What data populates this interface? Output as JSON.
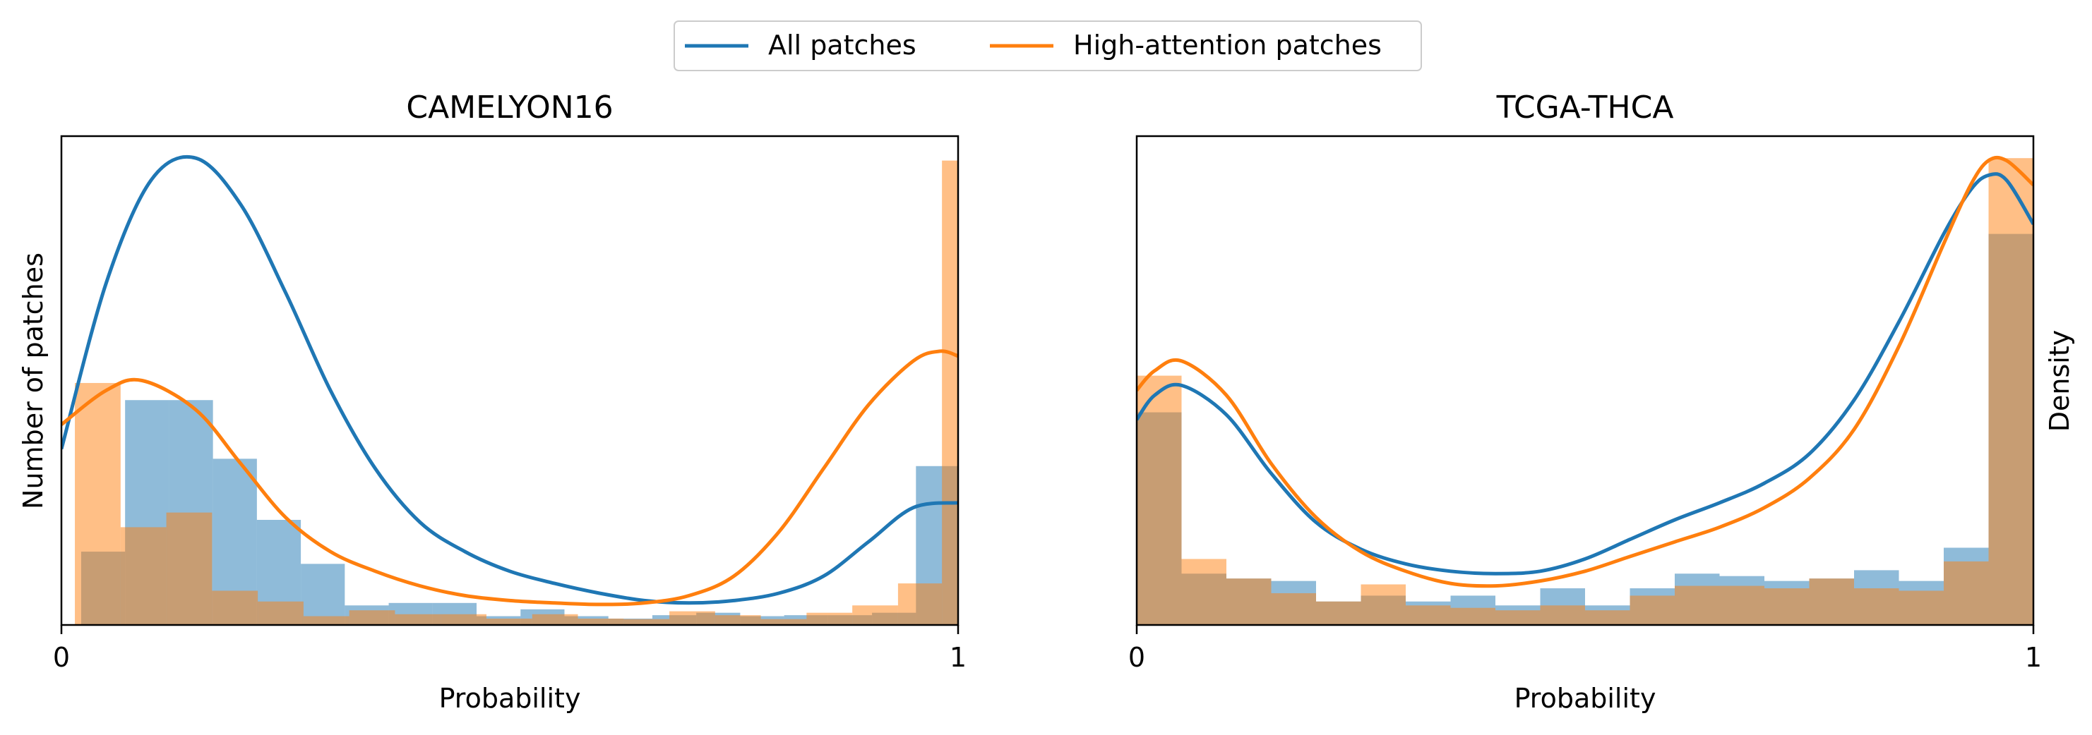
{
  "legend": {
    "placement": "top-center",
    "entries": [
      {
        "label": "All patches",
        "color": "#1f77b4"
      },
      {
        "label": "High-attention patches",
        "color": "#ff7f0e"
      }
    ]
  },
  "colors": {
    "all_line": "#1f77b4",
    "high_line": "#ff7f0e",
    "all_hist": "#1f77b4",
    "high_hist": "#ff7f0e",
    "hist_alpha": 0.5
  },
  "chart_data": [
    {
      "type": "histogram+kde",
      "title": "CAMELYON16",
      "xlabel": "Probability",
      "ylabel": "Number of patches",
      "xlim": [
        0,
        1
      ],
      "ylim": [
        0,
        1
      ],
      "xticks": [
        {
          "value": 0,
          "label": "0"
        },
        {
          "value": 1,
          "label": "1"
        }
      ],
      "show_yticks": false,
      "series": [
        {
          "name": "All patches",
          "hist": [
            {
              "x0": 0.022,
              "x1": 0.071,
              "h": 0.15
            },
            {
              "x0": 0.071,
              "x1": 0.12,
              "h": 0.46
            },
            {
              "x0": 0.12,
              "x1": 0.169,
              "h": 0.46
            },
            {
              "x0": 0.169,
              "x1": 0.218,
              "h": 0.34
            },
            {
              "x0": 0.218,
              "x1": 0.267,
              "h": 0.215
            },
            {
              "x0": 0.267,
              "x1": 0.316,
              "h": 0.125
            },
            {
              "x0": 0.316,
              "x1": 0.365,
              "h": 0.04
            },
            {
              "x0": 0.365,
              "x1": 0.414,
              "h": 0.045
            },
            {
              "x0": 0.414,
              "x1": 0.463,
              "h": 0.045
            },
            {
              "x0": 0.463,
              "x1": 0.512,
              "h": 0.018
            },
            {
              "x0": 0.512,
              "x1": 0.561,
              "h": 0.032
            },
            {
              "x0": 0.561,
              "x1": 0.61,
              "h": 0.018
            },
            {
              "x0": 0.61,
              "x1": 0.659,
              "h": 0.013
            },
            {
              "x0": 0.659,
              "x1": 0.708,
              "h": 0.02
            },
            {
              "x0": 0.708,
              "x1": 0.757,
              "h": 0.025
            },
            {
              "x0": 0.757,
              "x1": 0.806,
              "h": 0.018
            },
            {
              "x0": 0.806,
              "x1": 0.855,
              "h": 0.02
            },
            {
              "x0": 0.855,
              "x1": 0.904,
              "h": 0.02
            },
            {
              "x0": 0.904,
              "x1": 0.953,
              "h": 0.025
            },
            {
              "x0": 0.953,
              "x1": 1.0,
              "h": 0.325
            }
          ],
          "kde": {
            "x": [
              0,
              0.05,
              0.1,
              0.15,
              0.2,
              0.25,
              0.3,
              0.35,
              0.4,
              0.45,
              0.5,
              0.55,
              0.6,
              0.65,
              0.7,
              0.75,
              0.8,
              0.85,
              0.9,
              0.95,
              1.0
            ],
            "y": [
              0.36,
              0.7,
              0.91,
              0.955,
              0.86,
              0.68,
              0.48,
              0.32,
              0.21,
              0.15,
              0.11,
              0.085,
              0.065,
              0.05,
              0.045,
              0.05,
              0.065,
              0.1,
              0.17,
              0.24,
              0.25
            ]
          }
        },
        {
          "name": "High-attention patches",
          "hist": [
            {
              "x0": 0.015,
              "x1": 0.066,
              "h": 0.495
            },
            {
              "x0": 0.066,
              "x1": 0.117,
              "h": 0.2
            },
            {
              "x0": 0.117,
              "x1": 0.168,
              "h": 0.23
            },
            {
              "x0": 0.168,
              "x1": 0.219,
              "h": 0.07
            },
            {
              "x0": 0.219,
              "x1": 0.27,
              "h": 0.048
            },
            {
              "x0": 0.27,
              "x1": 0.321,
              "h": 0.018
            },
            {
              "x0": 0.321,
              "x1": 0.372,
              "h": 0.03
            },
            {
              "x0": 0.372,
              "x1": 0.423,
              "h": 0.022
            },
            {
              "x0": 0.423,
              "x1": 0.474,
              "h": 0.022
            },
            {
              "x0": 0.474,
              "x1": 0.525,
              "h": 0.013
            },
            {
              "x0": 0.525,
              "x1": 0.576,
              "h": 0.022
            },
            {
              "x0": 0.576,
              "x1": 0.627,
              "h": 0.013
            },
            {
              "x0": 0.627,
              "x1": 0.678,
              "h": 0.012
            },
            {
              "x0": 0.678,
              "x1": 0.729,
              "h": 0.028
            },
            {
              "x0": 0.729,
              "x1": 0.78,
              "h": 0.02
            },
            {
              "x0": 0.78,
              "x1": 0.831,
              "h": 0.012
            },
            {
              "x0": 0.831,
              "x1": 0.882,
              "h": 0.025
            },
            {
              "x0": 0.882,
              "x1": 0.933,
              "h": 0.04
            },
            {
              "x0": 0.933,
              "x1": 0.982,
              "h": 0.085
            },
            {
              "x0": 0.982,
              "x1": 1.0,
              "h": 0.95
            }
          ],
          "kde": {
            "x": [
              0,
              0.05,
              0.09,
              0.15,
              0.2,
              0.25,
              0.3,
              0.35,
              0.4,
              0.45,
              0.5,
              0.55,
              0.6,
              0.65,
              0.7,
              0.75,
              0.8,
              0.85,
              0.9,
              0.95,
              0.98,
              1.0
            ],
            "y": [
              0.41,
              0.48,
              0.5,
              0.44,
              0.33,
              0.22,
              0.15,
              0.11,
              0.08,
              0.06,
              0.05,
              0.045,
              0.042,
              0.045,
              0.06,
              0.1,
              0.19,
              0.32,
              0.45,
              0.54,
              0.56,
              0.55
            ]
          }
        }
      ]
    },
    {
      "type": "histogram+kde",
      "title": "TCGA-THCA",
      "xlabel": "Probability",
      "ylabel": "Density",
      "ylabel_side": "right",
      "xlim": [
        0,
        1
      ],
      "ylim": [
        0,
        1
      ],
      "xticks": [
        {
          "value": 0,
          "label": "0"
        },
        {
          "value": 1,
          "label": "1"
        }
      ],
      "show_yticks": false,
      "series": [
        {
          "name": "All patches",
          "hist": [
            {
              "x0": 0.0,
              "x1": 0.05,
              "h": 0.435
            },
            {
              "x0": 0.05,
              "x1": 0.1,
              "h": 0.105
            },
            {
              "x0": 0.1,
              "x1": 0.15,
              "h": 0.095
            },
            {
              "x0": 0.15,
              "x1": 0.2,
              "h": 0.09
            },
            {
              "x0": 0.2,
              "x1": 0.25,
              "h": 0.048
            },
            {
              "x0": 0.25,
              "x1": 0.3,
              "h": 0.06
            },
            {
              "x0": 0.3,
              "x1": 0.35,
              "h": 0.048
            },
            {
              "x0": 0.35,
              "x1": 0.4,
              "h": 0.06
            },
            {
              "x0": 0.4,
              "x1": 0.45,
              "h": 0.04
            },
            {
              "x0": 0.45,
              "x1": 0.5,
              "h": 0.075
            },
            {
              "x0": 0.5,
              "x1": 0.55,
              "h": 0.04
            },
            {
              "x0": 0.55,
              "x1": 0.6,
              "h": 0.075
            },
            {
              "x0": 0.6,
              "x1": 0.65,
              "h": 0.105
            },
            {
              "x0": 0.65,
              "x1": 0.7,
              "h": 0.1
            },
            {
              "x0": 0.7,
              "x1": 0.75,
              "h": 0.09
            },
            {
              "x0": 0.75,
              "x1": 0.8,
              "h": 0.095
            },
            {
              "x0": 0.8,
              "x1": 0.85,
              "h": 0.112
            },
            {
              "x0": 0.85,
              "x1": 0.9,
              "h": 0.09
            },
            {
              "x0": 0.9,
              "x1": 0.95,
              "h": 0.158
            },
            {
              "x0": 0.95,
              "x1": 1.0,
              "h": 0.8
            }
          ],
          "kde": {
            "x": [
              0,
              0.02,
              0.05,
              0.1,
              0.15,
              0.2,
              0.25,
              0.3,
              0.35,
              0.4,
              0.45,
              0.5,
              0.55,
              0.6,
              0.65,
              0.7,
              0.75,
              0.8,
              0.85,
              0.9,
              0.93,
              0.95,
              0.97,
              1.0
            ],
            "y": [
              0.42,
              0.47,
              0.49,
              0.43,
              0.31,
              0.21,
              0.155,
              0.125,
              0.11,
              0.105,
              0.11,
              0.135,
              0.175,
              0.215,
              0.25,
              0.29,
              0.35,
              0.46,
              0.62,
              0.8,
              0.89,
              0.92,
              0.91,
              0.82
            ]
          }
        },
        {
          "name": "High-attention patches",
          "hist": [
            {
              "x0": 0.0,
              "x1": 0.05,
              "h": 0.51
            },
            {
              "x0": 0.05,
              "x1": 0.1,
              "h": 0.135
            },
            {
              "x0": 0.1,
              "x1": 0.15,
              "h": 0.095
            },
            {
              "x0": 0.15,
              "x1": 0.2,
              "h": 0.065
            },
            {
              "x0": 0.2,
              "x1": 0.25,
              "h": 0.048
            },
            {
              "x0": 0.25,
              "x1": 0.3,
              "h": 0.083
            },
            {
              "x0": 0.3,
              "x1": 0.35,
              "h": 0.04
            },
            {
              "x0": 0.35,
              "x1": 0.4,
              "h": 0.035
            },
            {
              "x0": 0.4,
              "x1": 0.45,
              "h": 0.03
            },
            {
              "x0": 0.45,
              "x1": 0.5,
              "h": 0.04
            },
            {
              "x0": 0.5,
              "x1": 0.55,
              "h": 0.03
            },
            {
              "x0": 0.55,
              "x1": 0.6,
              "h": 0.06
            },
            {
              "x0": 0.6,
              "x1": 0.65,
              "h": 0.08
            },
            {
              "x0": 0.65,
              "x1": 0.7,
              "h": 0.08
            },
            {
              "x0": 0.7,
              "x1": 0.75,
              "h": 0.075
            },
            {
              "x0": 0.75,
              "x1": 0.8,
              "h": 0.095
            },
            {
              "x0": 0.8,
              "x1": 0.85,
              "h": 0.075
            },
            {
              "x0": 0.85,
              "x1": 0.9,
              "h": 0.07
            },
            {
              "x0": 0.9,
              "x1": 0.95,
              "h": 0.13
            },
            {
              "x0": 0.95,
              "x1": 1.0,
              "h": 0.955
            }
          ],
          "kde": {
            "x": [
              0,
              0.02,
              0.05,
              0.1,
              0.15,
              0.2,
              0.25,
              0.3,
              0.35,
              0.4,
              0.45,
              0.5,
              0.55,
              0.6,
              0.65,
              0.7,
              0.75,
              0.8,
              0.85,
              0.9,
              0.93,
              0.95,
              0.97,
              1.0
            ],
            "y": [
              0.48,
              0.52,
              0.54,
              0.47,
              0.33,
              0.22,
              0.15,
              0.11,
              0.085,
              0.08,
              0.09,
              0.11,
              0.14,
              0.17,
              0.2,
              0.24,
              0.3,
              0.4,
              0.57,
              0.78,
              0.9,
              0.95,
              0.95,
              0.9
            ]
          }
        }
      ]
    }
  ]
}
